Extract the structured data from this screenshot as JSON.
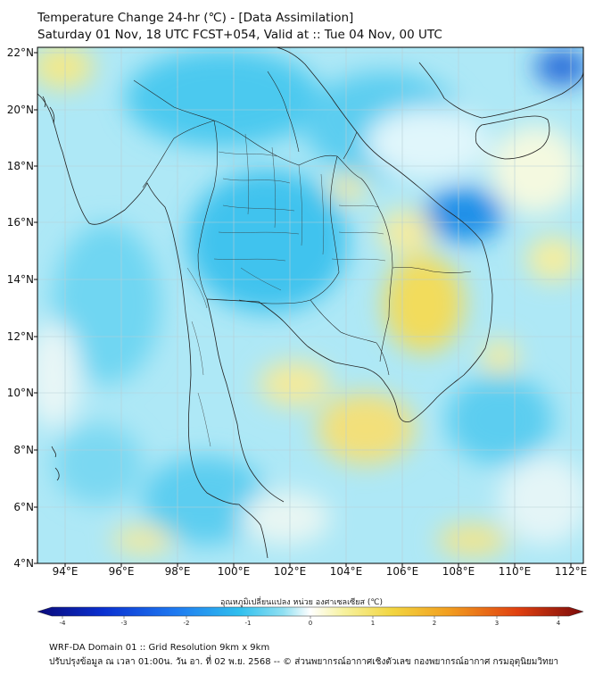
{
  "header": {
    "title_line1": "Temperature Change 24-hr (℃) - [Data Assimilation]",
    "title_line2": "Saturday 01 Nov, 18 UTC FCST+054, Valid at :: Tue 04 Nov, 00 UTC"
  },
  "map": {
    "lat_labels": [
      "22°N",
      "20°N",
      "18°N",
      "16°N",
      "14°N",
      "12°N",
      "10°N",
      "8°N",
      "6°N",
      "4°N"
    ],
    "lon_labels": [
      "94°E",
      "96°E",
      "98°E",
      "100°E",
      "102°E",
      "104°E",
      "106°E",
      "108°E",
      "110°E",
      "112°E"
    ],
    "extent": {
      "lon_min": 93.0,
      "lon_max": 112.4,
      "lat_min": 4.0,
      "lat_max": 22.2
    }
  },
  "colorbar": {
    "title": "อุณหภูมิเปลี่ยนแปลง หน่วย องศาเซลเซียส (℃)",
    "ticks": [
      "-4",
      "-3",
      "-2",
      "-1",
      "0",
      "1",
      "2",
      "3",
      "4"
    ],
    "range": [
      -4,
      4
    ],
    "colors": [
      "#0a0a7a",
      "#0a30d0",
      "#1e78f0",
      "#2fbfee",
      "#8fe0f2",
      "#ffffff",
      "#f7f2a0",
      "#f2d540",
      "#f2a020",
      "#e04010",
      "#7a0a0a"
    ]
  },
  "footer": {
    "line1": "WRF-DA Domain 01 :: Grid Resolution 9km x 9km",
    "line2": "ปรับปรุงข้อมูล ณ เวลา 01:00น. วัน อา. ที่ 02 พ.ย. 2568 -- © ส่วนพยากรณ์อากาศเชิงตัวเลข กองพยากรณ์อากาศ กรมอุตุนิยมวิทยา"
  }
}
